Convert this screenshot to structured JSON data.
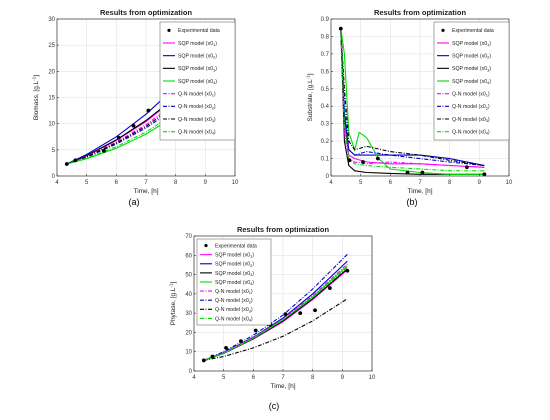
{
  "panel_labels": [
    "(a)",
    "(b)",
    "(c)"
  ],
  "legend_entries": [
    "Experimental data",
    "SQP model (x0",
    "SQP model (x0",
    "SQP model (x0",
    "SQP model (x0",
    "Q-N model (x0",
    "Q-N model (x0",
    "Q-N model (x0",
    "Q-N model (x0"
  ],
  "legend_subscripts": [
    "",
    "1",
    "2",
    "3",
    "4",
    "1",
    "2",
    "3",
    "4"
  ],
  "legend_suffix": ")",
  "series_colors": [
    "#ff00ff",
    "#0000cc",
    "#000000",
    "#00dd00",
    "#ff00ff",
    "#0000cc",
    "#000000",
    "#00dd00"
  ],
  "series_dash": [
    "solid",
    "solid",
    "solid",
    "solid",
    "dash-dot",
    "dash-dot",
    "dash-dot",
    "dash-dot"
  ],
  "chart_data": [
    {
      "type": "line",
      "title": "Results from optimization",
      "xlabel": "Time, [h]",
      "ylabel_main": "Biomass, [g.L",
      "ylabel_sup": "-1",
      "ylabel_end": "]",
      "xlim": [
        4,
        10
      ],
      "ylim": [
        0,
        30
      ],
      "xticks": [
        "4",
        "5",
        "6",
        "7",
        "8",
        "9",
        "10"
      ],
      "yticks": [
        "0",
        "5",
        "10",
        "15",
        "20",
        "25",
        "30"
      ],
      "grid": true,
      "legend_position": "top-right",
      "experimental": {
        "x": [
          4.33,
          4.62,
          5.58,
          6.08,
          6.58,
          7.08,
          7.58,
          8.08,
          8.58,
          9.17
        ],
        "y": [
          2.3,
          3.0,
          4.8,
          7.3,
          9.6,
          12.5,
          14.5,
          18.3,
          22.0,
          26.5
        ]
      },
      "series": [
        {
          "x": [
            4.33,
            5.0,
            6.0,
            7.0,
            8.0,
            9.17
          ],
          "y": [
            2.3,
            3.9,
            6.8,
            10.4,
            14.9,
            21.0
          ]
        },
        {
          "x": [
            4.33,
            5.0,
            6.0,
            7.0,
            8.0,
            9.17
          ],
          "y": [
            2.3,
            4.1,
            7.5,
            11.8,
            17.0,
            23.5
          ]
        },
        {
          "x": [
            4.33,
            5.0,
            6.0,
            7.0,
            8.0,
            9.17
          ],
          "y": [
            2.3,
            3.9,
            6.9,
            10.6,
            15.1,
            21.2
          ]
        },
        {
          "x": [
            4.33,
            5.0,
            6.0,
            7.0,
            8.0,
            9.17
          ],
          "y": [
            2.3,
            3.3,
            5.3,
            8.0,
            11.5,
            16.6
          ]
        },
        {
          "x": [
            4.33,
            5.0,
            6.0,
            7.0,
            8.0,
            9.17
          ],
          "y": [
            2.3,
            3.8,
            6.5,
            9.8,
            14.0,
            19.6
          ]
        },
        {
          "x": [
            4.33,
            5.0,
            6.0,
            7.0,
            8.0,
            9.17
          ],
          "y": [
            2.3,
            3.6,
            6.1,
            9.2,
            13.0,
            18.3
          ]
        },
        {
          "x": [
            4.33,
            5.0,
            6.0,
            7.0,
            8.0,
            9.17
          ],
          "y": [
            2.3,
            3.7,
            6.3,
            9.5,
            13.5,
            18.9
          ]
        },
        {
          "x": [
            4.33,
            5.0,
            6.0,
            7.0,
            8.0,
            9.17
          ],
          "y": [
            2.3,
            3.4,
            5.6,
            8.4,
            12.0,
            17.2
          ]
        }
      ]
    },
    {
      "type": "line",
      "title": "Results from optimization",
      "xlabel": "Time, [h]",
      "ylabel_main": "Substrate, [g.L",
      "ylabel_sup": "-1",
      "ylabel_end": "]",
      "xlim": [
        4,
        10
      ],
      "ylim": [
        0,
        0.9
      ],
      "xticks": [
        "4",
        "5",
        "6",
        "7",
        "8",
        "9",
        "10"
      ],
      "yticks": [
        "0",
        "0.1",
        "0.2",
        "0.3",
        "0.4",
        "0.5",
        "0.6",
        "0.7",
        "0.8",
        "0.9"
      ],
      "grid": true,
      "legend_position": "top-right",
      "experimental": {
        "x": [
          4.33,
          4.62,
          5.08,
          5.58,
          6.58,
          7.08,
          8.58,
          9.17
        ],
        "y": [
          0.845,
          0.09,
          0.08,
          0.1,
          0.02,
          0.02,
          0.05,
          0.01
        ]
      },
      "series": [
        {
          "x": [
            4.33,
            4.45,
            4.6,
            4.8,
            5.2,
            6.0,
            7.0,
            8.0,
            9.17
          ],
          "y": [
            0.845,
            0.3,
            0.12,
            0.1,
            0.08,
            0.07,
            0.07,
            0.06,
            0.05
          ]
        },
        {
          "x": [
            4.33,
            4.45,
            4.6,
            4.8,
            5.2,
            6.0,
            7.0,
            8.0,
            9.17
          ],
          "y": [
            0.845,
            0.35,
            0.15,
            0.12,
            0.12,
            0.12,
            0.12,
            0.1,
            0.06
          ]
        },
        {
          "x": [
            4.33,
            4.45,
            4.6,
            4.8,
            5.2,
            6.0,
            7.0,
            8.0,
            9.17
          ],
          "y": [
            0.845,
            0.2,
            0.06,
            0.03,
            0.02,
            0.015,
            0.01,
            0.01,
            0.01
          ]
        },
        {
          "x": [
            4.33,
            4.45,
            4.6,
            4.8,
            4.95,
            5.2,
            5.6,
            6.0,
            7.0,
            8.0,
            9.17
          ],
          "y": [
            0.845,
            0.7,
            0.25,
            0.15,
            0.25,
            0.22,
            0.1,
            0.04,
            0.02,
            0.01,
            0.01
          ]
        },
        {
          "x": [
            4.33,
            4.45,
            4.6,
            4.8,
            5.2,
            6.0,
            7.0,
            8.0,
            9.17
          ],
          "y": [
            0.845,
            0.25,
            0.1,
            0.08,
            0.07,
            0.08,
            0.07,
            0.06,
            0.05
          ]
        },
        {
          "x": [
            4.33,
            4.45,
            4.6,
            4.8,
            5.2,
            6.0,
            7.0,
            8.0,
            9.17
          ],
          "y": [
            0.845,
            0.4,
            0.15,
            0.12,
            0.14,
            0.12,
            0.1,
            0.08,
            0.06
          ]
        },
        {
          "x": [
            4.33,
            4.45,
            4.6,
            4.8,
            5.2,
            6.0,
            7.0,
            8.0,
            9.17
          ],
          "y": [
            0.845,
            0.5,
            0.2,
            0.15,
            0.17,
            0.14,
            0.12,
            0.09,
            0.06
          ]
        },
        {
          "x": [
            4.33,
            4.45,
            4.6,
            4.8,
            5.2,
            6.0,
            7.0,
            8.0,
            9.17
          ],
          "y": [
            0.845,
            0.3,
            0.1,
            0.07,
            0.06,
            0.05,
            0.04,
            0.03,
            0.03
          ]
        }
      ]
    },
    {
      "type": "line",
      "title": "Results from optimization",
      "xlabel": "Time, [h]",
      "ylabel_main": "Phytase, [g.L",
      "ylabel_sup": "-1",
      "ylabel_end": "]",
      "xlim": [
        4,
        10
      ],
      "ylim": [
        0,
        70
      ],
      "xticks": [
        "4",
        "5",
        "6",
        "7",
        "8",
        "9",
        "10"
      ],
      "yticks": [
        "0",
        "10",
        "20",
        "30",
        "40",
        "50",
        "60",
        "70"
      ],
      "grid": true,
      "legend_position": "top-left",
      "experimental": {
        "x": [
          4.33,
          4.62,
          5.08,
          5.58,
          6.08,
          6.58,
          7.08,
          7.58,
          8.08,
          8.58,
          9.17
        ],
        "y": [
          5.5,
          7.5,
          12.0,
          15.5,
          21.0,
          24.0,
          29.5,
          30.0,
          31.5,
          43.0,
          52.0
        ]
      },
      "series": [
        {
          "x": [
            4.33,
            5.0,
            6.0,
            7.0,
            8.0,
            9.17
          ],
          "y": [
            5.5,
            9.0,
            16.5,
            25.5,
            37.0,
            52.5
          ]
        },
        {
          "x": [
            4.33,
            5.0,
            6.0,
            7.0,
            8.0,
            9.17
          ],
          "y": [
            5.5,
            9.5,
            17.5,
            27.5,
            40.0,
            57.0
          ]
        },
        {
          "x": [
            4.33,
            5.0,
            6.0,
            7.0,
            8.0,
            9.17
          ],
          "y": [
            5.5,
            9.2,
            16.8,
            26.0,
            37.5,
            53.0
          ]
        },
        {
          "x": [
            4.33,
            5.0,
            6.0,
            7.0,
            8.0,
            9.17
          ],
          "y": [
            5.5,
            9.3,
            17.0,
            26.5,
            38.5,
            54.5
          ]
        },
        {
          "x": [
            4.33,
            5.0,
            6.0,
            7.0,
            8.0,
            9.17
          ],
          "y": [
            5.5,
            9.4,
            17.3,
            27.0,
            39.0,
            55.5
          ]
        },
        {
          "x": [
            4.33,
            5.0,
            6.0,
            7.0,
            8.0,
            9.17
          ],
          "y": [
            5.5,
            10.0,
            18.5,
            29.0,
            42.5,
            60.5
          ]
        },
        {
          "x": [
            4.33,
            5.0,
            6.0,
            7.0,
            8.0,
            9.17
          ],
          "y": [
            5.5,
            7.5,
            12.0,
            18.0,
            26.0,
            37.5
          ]
        },
        {
          "x": [
            4.33,
            5.0,
            6.0,
            7.0,
            8.0,
            9.17
          ],
          "y": [
            5.5,
            9.2,
            17.0,
            26.5,
            38.0,
            54.0
          ]
        }
      ]
    }
  ]
}
